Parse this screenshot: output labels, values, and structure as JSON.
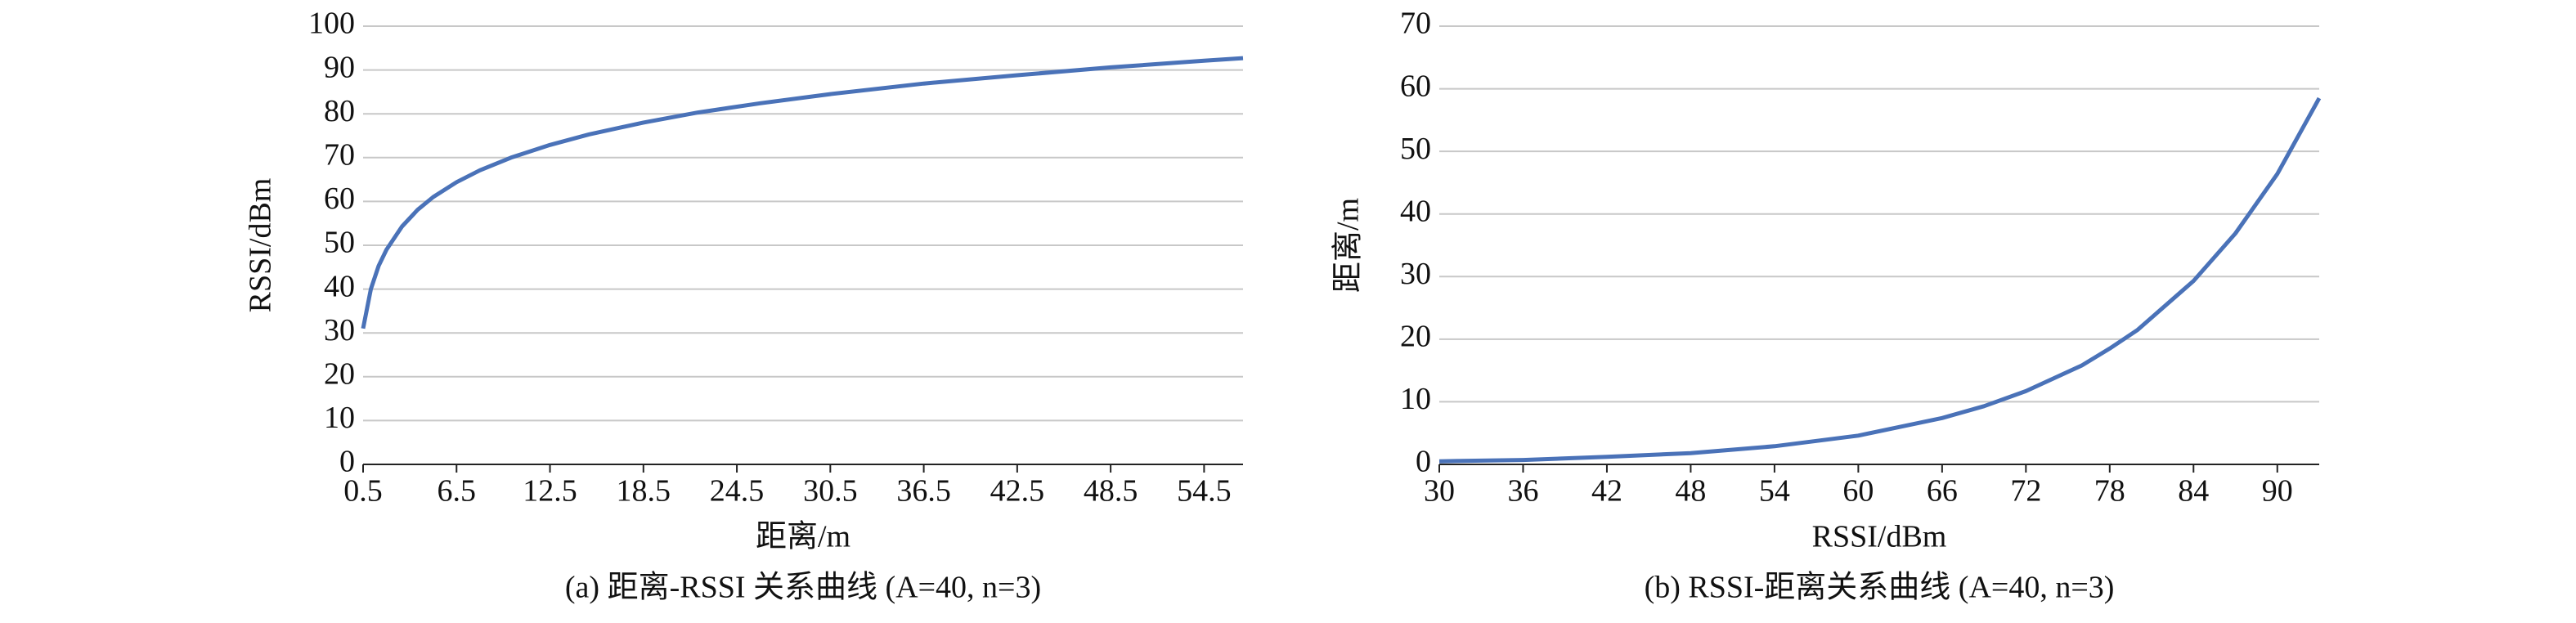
{
  "chart_data": [
    {
      "type": "line",
      "caption": "(a) 距离-RSSI 关系曲线 (A=40, n=3)",
      "x_label": "距离/m",
      "y_label": "RSSI/dBm",
      "x": [
        0.5,
        1,
        1.5,
        2,
        3,
        4,
        5,
        6.5,
        8,
        10,
        12.5,
        15,
        18.5,
        22,
        26,
        30.5,
        36.5,
        42.5,
        48.5,
        54.5,
        57
      ],
      "values": [
        31.0,
        40,
        45.3,
        49.0,
        54.3,
        58.1,
        61.0,
        64.4,
        67.1,
        70,
        72.9,
        75.3,
        78.0,
        80.3,
        82.4,
        84.5,
        86.9,
        88.8,
        90.6,
        92.1,
        92.7
      ],
      "color": "#4a72b8",
      "xlim": [
        0.5,
        57
      ],
      "xticks": [
        0.5,
        6.5,
        12.5,
        18.5,
        24.5,
        30.5,
        36.5,
        42.5,
        48.5,
        54.5
      ],
      "ylim": [
        0,
        100
      ],
      "yticks": [
        0,
        10,
        20,
        30,
        40,
        50,
        60,
        70,
        80,
        90,
        100
      ],
      "grid": true
    },
    {
      "type": "line",
      "caption": "(b) RSSI-距离关系曲线 (A=40, n=3)",
      "x_label": "RSSI/dBm",
      "y_label": "距离/m",
      "x": [
        30,
        36,
        42,
        48,
        54,
        60,
        66,
        69,
        72,
        76,
        78,
        80,
        84,
        87,
        90,
        93
      ],
      "values": [
        0.5,
        0.7,
        1.2,
        1.8,
        2.9,
        4.6,
        7.4,
        9.3,
        11.7,
        15.8,
        18.5,
        21.5,
        29.3,
        36.9,
        46.4,
        58.5
      ],
      "color": "#4a72b8",
      "xlim": [
        30,
        93
      ],
      "xticks": [
        30,
        36,
        42,
        48,
        54,
        60,
        66,
        72,
        78,
        84,
        90
      ],
      "ylim": [
        0,
        70
      ],
      "yticks": [
        0,
        10,
        20,
        30,
        40,
        50,
        60,
        70
      ],
      "grid": true
    }
  ]
}
